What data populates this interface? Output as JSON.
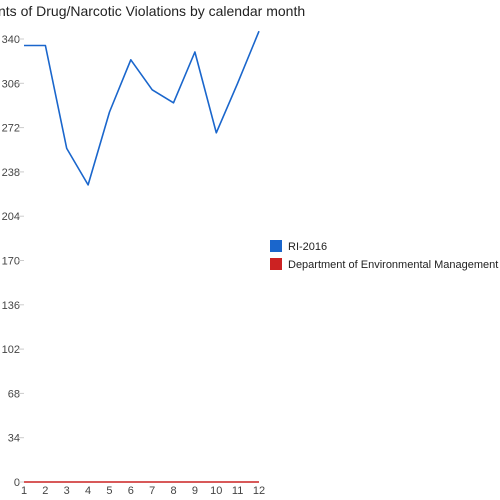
{
  "chart_data": {
    "type": "line",
    "title": "nts of Drug/Narcotic Violations by calendar month",
    "xlabel": "",
    "ylabel": "",
    "categories": [
      "1",
      "2",
      "3",
      "4",
      "5",
      "6",
      "7",
      "8",
      "9",
      "10",
      "11",
      "12"
    ],
    "ylim": [
      0,
      340
    ],
    "yticks": [
      0,
      34,
      68,
      102,
      136,
      170,
      204,
      238,
      272,
      306,
      340
    ],
    "grid": false,
    "legend_position": "right",
    "series": [
      {
        "name": "RI-2016",
        "color": "#1a66cc",
        "values": [
          335,
          335,
          256,
          228,
          284,
          324,
          301,
          291,
          330,
          268,
          306,
          346
        ]
      },
      {
        "name": "Department of Environmental Management",
        "color": "#cc2222",
        "values": [
          0,
          0,
          0,
          0,
          0,
          0,
          0,
          0,
          0,
          0,
          0,
          0
        ]
      }
    ]
  }
}
